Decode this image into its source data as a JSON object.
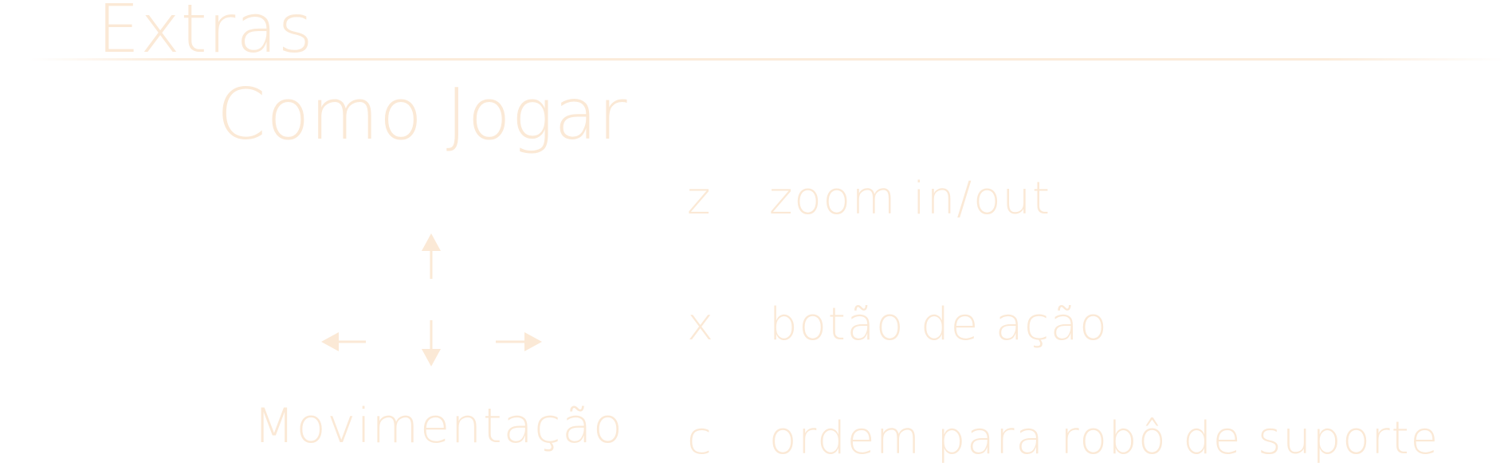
{
  "header": {
    "section_title": "Extras"
  },
  "page": {
    "title": "Como Jogar"
  },
  "movement": {
    "label": "Movimentação",
    "icons": [
      "arrow-up-icon",
      "arrow-left-icon",
      "arrow-down-icon",
      "arrow-right-icon"
    ]
  },
  "controls": [
    {
      "key": "z",
      "description": "zoom in/out"
    },
    {
      "key": "x",
      "description": "botão de ação"
    },
    {
      "key": "c",
      "description": "ordem para robô de suporte"
    }
  ],
  "colors": {
    "text": "#fbe9d6",
    "background": "#ffffff"
  }
}
